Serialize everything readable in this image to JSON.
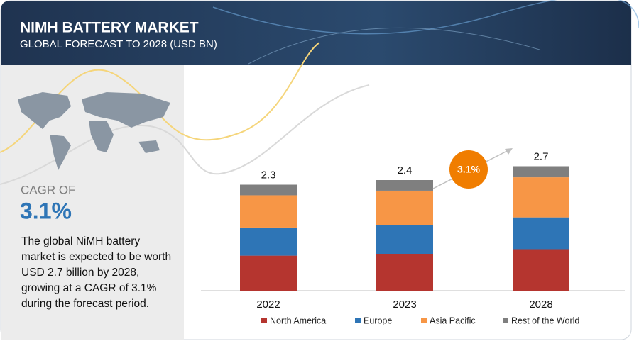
{
  "header": {
    "title": "NIMH BATTERY MARKET",
    "subtitle": "GLOBAL FORECAST TO 2028 (USD BN)"
  },
  "sidebar": {
    "cagr_label": "CAGR OF",
    "cagr_value": "3.1%",
    "description": "The global NiMH battery market is expected to be worth USD 2.7 billion by 2028, growing at a CAGR of 3.1% during the forecast period."
  },
  "chart_data": {
    "type": "stacked_bar",
    "categories": [
      "2022",
      "2023",
      "2028"
    ],
    "series": [
      {
        "name": "North America",
        "color": "#b5352f",
        "values": [
          0.76,
          0.8,
          0.9
        ]
      },
      {
        "name": "Europe",
        "color": "#2e75b6",
        "values": [
          0.61,
          0.62,
          0.69
        ]
      },
      {
        "name": "Asia Pacific",
        "color": "#f79646",
        "values": [
          0.7,
          0.75,
          0.87
        ]
      },
      {
        "name": "Rest of the World",
        "color": "#7f7f7f",
        "values": [
          0.23,
          0.23,
          0.24
        ]
      }
    ],
    "totals": [
      2.3,
      2.4,
      2.7
    ],
    "annotation": "3.1%",
    "legend": "bottom"
  }
}
